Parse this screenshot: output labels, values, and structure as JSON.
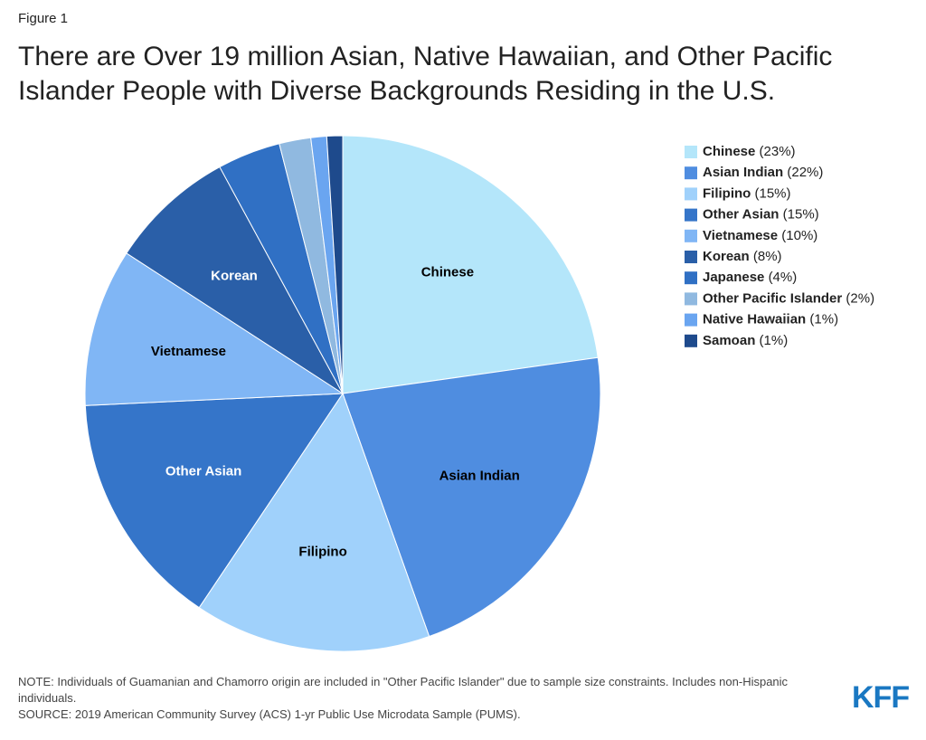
{
  "chart_data": {
    "type": "pie",
    "figure_label": "Figure 1",
    "title": "There are Over 19 million Asian, Native Hawaiian, and Other Pacific Islander People with Diverse Backgrounds Residing in the U.S.",
    "categories": [
      "Chinese",
      "Asian Indian",
      "Filipino",
      "Other Asian",
      "Vietnamese",
      "Korean",
      "Japanese",
      "Other Pacific Islander",
      "Native Hawaiian",
      "Samoan"
    ],
    "values": [
      23,
      22,
      15,
      15,
      10,
      8,
      4,
      2,
      1,
      1
    ],
    "value_labels": [
      "(23%)",
      "(22%)",
      "(15%)",
      "(15%)",
      "(10%)",
      "(8%)",
      "(4%)",
      "(2%)",
      "(1%)",
      "(1%)"
    ],
    "colors": [
      "#b4e6fa",
      "#4f8de0",
      "#a0d1fb",
      "#3575c9",
      "#80b6f5",
      "#2a5fa8",
      "#3070c4",
      "#90b9e0",
      "#6aa5f0",
      "#1e4a8c"
    ],
    "legend": "right",
    "note": "NOTE: Individuals of Guamanian and Chamorro origin are included in \"Other Pacific Islander\" due to sample size constraints. Includes non-Hispanic individuals.",
    "source": "SOURCE: 2019 American Community Survey (ACS) 1-yr Public Use Microdata Sample (PUMS).",
    "logo": "KFF"
  }
}
